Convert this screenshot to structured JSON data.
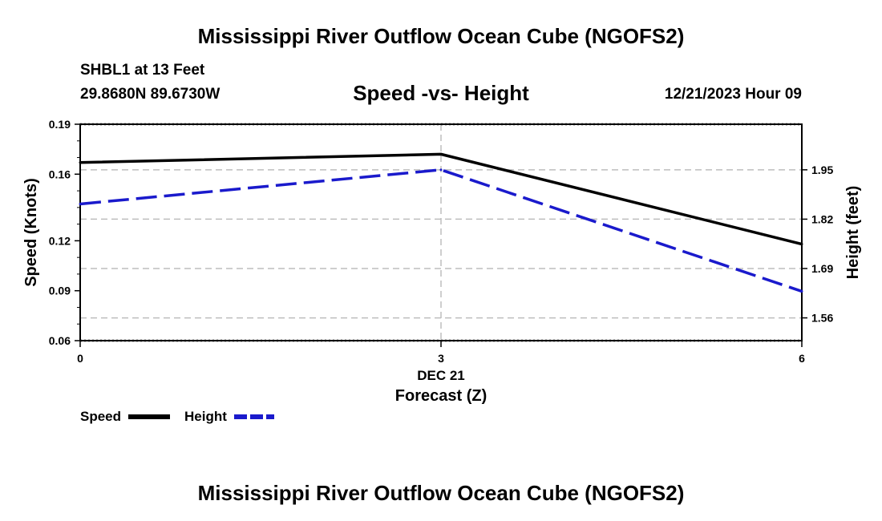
{
  "page": {
    "title": "Mississippi River Outflow Ocean Cube (NGOFS2)",
    "footer_title": "Mississippi River Outflow Ocean Cube (NGOFS2)",
    "station": "SHBL1 at 13 Feet",
    "coords": "29.8680N  89.6730W",
    "subtitle": "Speed -vs- Height",
    "datetime": "12/21/2023 Hour 09"
  },
  "chart_data": {
    "type": "line",
    "title": "Speed -vs- Height",
    "xlabel": "Forecast (Z)",
    "x_date_label": "DEC 21",
    "ylabel_left": "Speed (Knots)",
    "ylabel_right": "Height (feet)",
    "x": [
      0,
      3,
      6
    ],
    "x_ticks": [
      0,
      3,
      6
    ],
    "xlim": [
      0,
      6
    ],
    "ylim_left": [
      0.06,
      0.19
    ],
    "y_ticks_left": [
      0.06,
      0.09,
      0.12,
      0.16,
      0.19
    ],
    "ylim_right": [
      1.5,
      2.07
    ],
    "y_ticks_right": [
      1.56,
      1.69,
      1.82,
      1.95
    ],
    "grid": true,
    "series": [
      {
        "name": "Speed",
        "axis": "left",
        "color": "#000000",
        "dash": "solid",
        "values": [
          0.167,
          0.172,
          0.118
        ]
      },
      {
        "name": "Height",
        "axis": "right",
        "color": "#1a1acc",
        "dash": "dashed",
        "values": [
          1.86,
          1.95,
          1.63
        ]
      }
    ],
    "legend": {
      "position": "bottom-left"
    }
  }
}
